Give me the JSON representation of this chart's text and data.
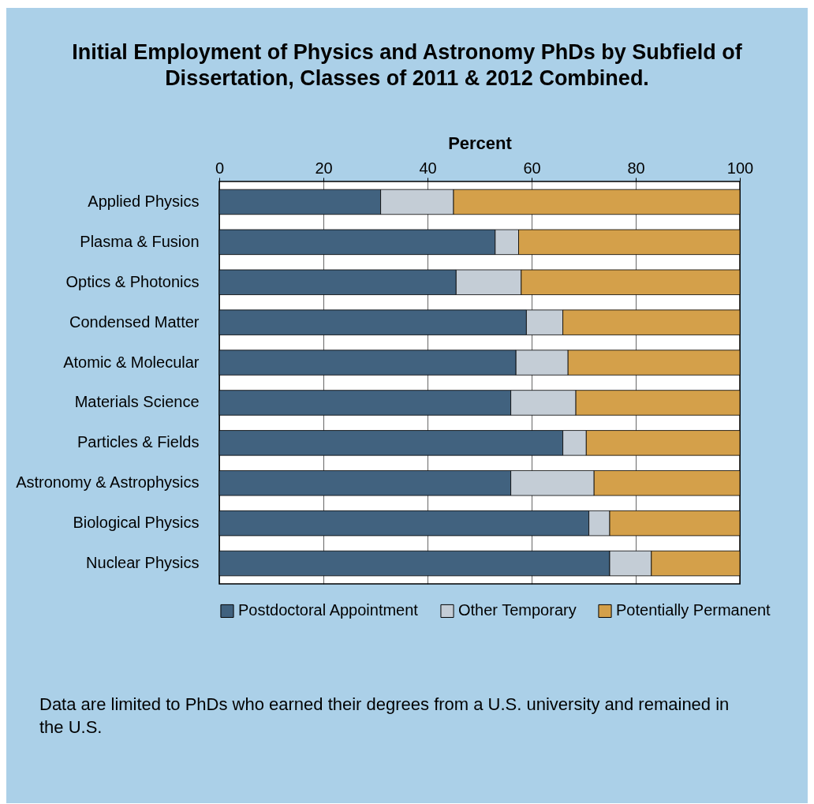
{
  "chart_data": {
    "type": "bar",
    "orientation": "horizontal",
    "stacked": true,
    "title": "Initial Employment of Physics and Astronomy PhDs by Subfield of Dissertation, Classes of 2011 & 2012 Combined.",
    "xlabel": "Percent",
    "categories": [
      "Applied Physics",
      "Plasma & Fusion",
      "Optics & Photonics",
      "Condensed Matter",
      "Atomic & Molecular",
      "Materials Science",
      "Particles & Fields",
      "Astronomy & Astrophysics",
      "Biological Physics",
      "Nuclear Physics"
    ],
    "series": [
      {
        "name": "Postdoctoral Appointment",
        "color": "#41627f",
        "values": [
          31,
          53,
          45.5,
          59,
          57,
          56,
          66,
          56,
          71,
          75
        ]
      },
      {
        "name": "Other Temporary",
        "color": "#c4cdd6",
        "values": [
          14,
          4.5,
          12.5,
          7,
          10,
          12.5,
          4.5,
          16,
          4,
          8
        ]
      },
      {
        "name": "Potentially Permanent",
        "color": "#d4a04a",
        "values": [
          55,
          42.5,
          42,
          34,
          33,
          31.5,
          29.5,
          28,
          25,
          17
        ]
      }
    ],
    "xlim": [
      0,
      100
    ],
    "xticks": [
      0,
      20,
      40,
      60,
      80,
      100
    ],
    "grid": "x",
    "legend": "bottom",
    "annotations": [
      "Data are limited to PhDs who earned their degrees from a U.S. university and remained in the U.S."
    ]
  }
}
